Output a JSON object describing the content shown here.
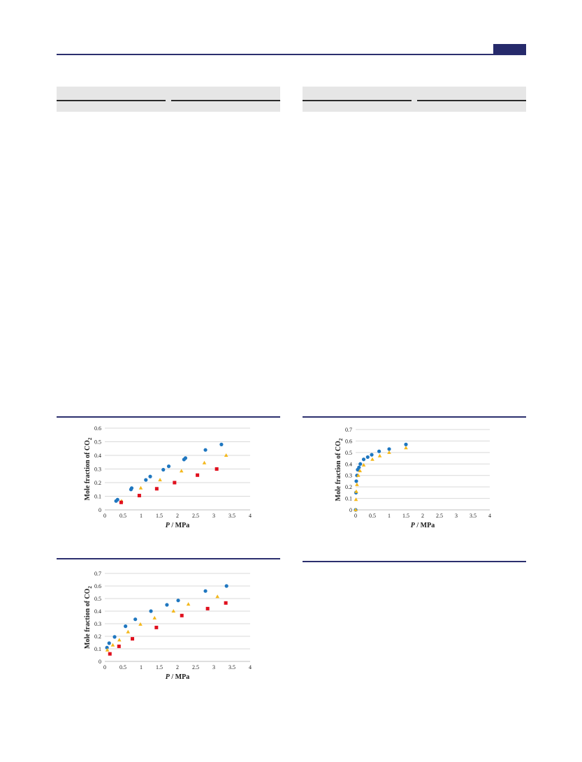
{
  "colors": {
    "header_rule": "#2b2f6e",
    "page_tab": "#262a6b",
    "table_shade": "#e6e6e6",
    "series_circle": "#1f77c0",
    "series_triangle": "#f4b81c",
    "series_square": "#e0101e",
    "gridline": "#d9d9d9"
  },
  "chart_data": [
    {
      "type": "scatter",
      "xlabel_var": "P",
      "xlabel_unit": " / MPa",
      "ylabel_main": "Mole fraction of CO",
      "ylabel_sub": "2",
      "xlim": [
        0,
        4
      ],
      "ylim": [
        0,
        0.6
      ],
      "xticks": [
        "0",
        "0.5",
        "1",
        "1.5",
        "2",
        "2.5",
        "3",
        "3.5",
        "4"
      ],
      "yticks": [
        "0",
        "0.1",
        "0.2",
        "0.3",
        "0.4",
        "0.5",
        "0.6"
      ],
      "grid": "horizontal",
      "series": [
        {
          "marker": "circle",
          "color": "#1f77c0",
          "x": [
            0.31,
            0.35,
            0.72,
            0.74,
            1.13,
            1.25,
            1.61,
            1.76,
            2.18,
            2.22,
            2.77,
            3.21
          ],
          "y": [
            0.065,
            0.075,
            0.15,
            0.16,
            0.22,
            0.245,
            0.295,
            0.32,
            0.37,
            0.38,
            0.44,
            0.48
          ]
        },
        {
          "marker": "triangle",
          "color": "#f4b81c",
          "x": [
            0.46,
            0.99,
            1.52,
            2.11,
            2.74,
            3.34
          ],
          "y": [
            0.065,
            0.16,
            0.22,
            0.285,
            0.345,
            0.4
          ]
        },
        {
          "marker": "square",
          "color": "#e0101e",
          "x": [
            0.45,
            0.95,
            1.43,
            1.92,
            2.55,
            3.08
          ],
          "y": [
            0.055,
            0.105,
            0.155,
            0.2,
            0.255,
            0.3
          ]
        }
      ]
    },
    {
      "type": "scatter",
      "xlabel_var": "P",
      "xlabel_unit": " / MPa",
      "ylabel_main": "Mole fraction of CO",
      "ylabel_sub": "2",
      "xlim": [
        0,
        4
      ],
      "ylim": [
        0,
        0.7
      ],
      "xticks": [
        "0",
        "0.5",
        "1",
        "1.5",
        "2",
        "2.5",
        "3",
        "3.5",
        "4"
      ],
      "yticks": [
        "0",
        "0.1",
        "0.2",
        "0.3",
        "0.4",
        "0.5",
        "0.6",
        "0.7"
      ],
      "grid": "horizontal",
      "series": [
        {
          "marker": "circle",
          "color": "#1f77c0",
          "x": [
            0.0,
            0.01,
            0.02,
            0.04,
            0.06,
            0.1,
            0.14,
            0.24,
            0.36,
            0.48,
            0.7,
            1.0,
            1.5
          ],
          "y": [
            0.0,
            0.15,
            0.25,
            0.3,
            0.35,
            0.37,
            0.4,
            0.44,
            0.46,
            0.48,
            0.51,
            0.53,
            0.57
          ]
        },
        {
          "marker": "triangle",
          "color": "#f4b81c",
          "x": [
            0.0,
            0.01,
            0.02,
            0.04,
            0.08,
            0.13,
            0.24,
            0.5,
            0.72,
            1.0,
            1.5
          ],
          "y": [
            0.0,
            0.09,
            0.16,
            0.22,
            0.3,
            0.34,
            0.39,
            0.44,
            0.47,
            0.5,
            0.54
          ]
        }
      ]
    },
    {
      "type": "scatter",
      "xlabel_var": "P",
      "xlabel_unit": " / MPa",
      "ylabel_main": "Mole fraction of CO",
      "ylabel_sub": "2",
      "xlim": [
        0,
        4
      ],
      "ylim": [
        0,
        0.7
      ],
      "xticks": [
        "0",
        "0.5",
        "1",
        "1.5",
        "2",
        "2.5",
        "3",
        "3.5",
        "4"
      ],
      "yticks": [
        "0",
        "0.1",
        "0.2",
        "0.3",
        "0.4",
        "0.5",
        "0.6",
        "0.7"
      ],
      "grid": "horizontal",
      "series": [
        {
          "marker": "circle",
          "color": "#1f77c0",
          "x": [
            0.06,
            0.12,
            0.27,
            0.57,
            0.84,
            1.27,
            1.71,
            2.02,
            2.77,
            3.35
          ],
          "y": [
            0.11,
            0.145,
            0.195,
            0.28,
            0.335,
            0.4,
            0.45,
            0.485,
            0.56,
            0.6
          ]
        },
        {
          "marker": "triangle",
          "color": "#f4b81c",
          "x": [
            0.07,
            0.22,
            0.4,
            0.64,
            0.98,
            1.37,
            1.89,
            2.3,
            3.1
          ],
          "y": [
            0.09,
            0.13,
            0.17,
            0.235,
            0.295,
            0.345,
            0.4,
            0.455,
            0.515
          ]
        },
        {
          "marker": "square",
          "color": "#e0101e",
          "x": [
            0.14,
            0.39,
            0.76,
            1.42,
            2.12,
            2.83,
            3.33
          ],
          "y": [
            0.06,
            0.12,
            0.18,
            0.27,
            0.365,
            0.42,
            0.465
          ]
        }
      ]
    }
  ]
}
